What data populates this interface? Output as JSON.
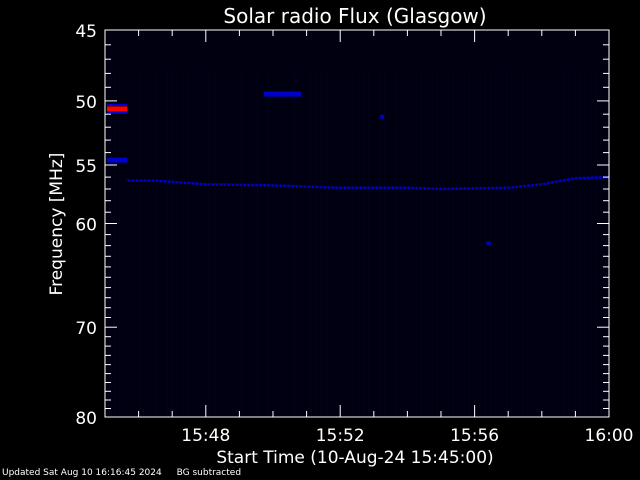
{
  "chart_data": {
    "type": "heatmap",
    "title": "Solar radio Flux (Glasgow)",
    "xlabel": "Start Time (10-Aug-24 15:45:00)",
    "ylabel": "Frequency [MHz]",
    "xlim": [
      "15:45:00",
      "16:00:00"
    ],
    "x_ticks": [
      "15:48",
      "15:52",
      "15:56",
      "16:00"
    ],
    "ylim": [
      45,
      80
    ],
    "y_scale": "log",
    "y_reversed": true,
    "y_ticks": [
      "45",
      "50",
      "55",
      "60",
      "70",
      "80"
    ],
    "colors": {
      "background": "#000011",
      "band": "#0000cc",
      "strong": "#ff0000"
    },
    "features": [
      {
        "kind": "band",
        "mhz": [
          56.3,
          56.3,
          56.6,
          56.7,
          56.9,
          56.9,
          57.0,
          56.9,
          56.6,
          56.1,
          56.0
        ],
        "times": [
          "15:45:40",
          "15:46:30",
          "15:48:00",
          "15:50:00",
          "15:52:00",
          "15:54:00",
          "15:55:00",
          "15:57:00",
          "15:58:00",
          "15:59:00",
          "16:00:00"
        ]
      },
      {
        "kind": "burst",
        "start": "15:45:00",
        "end": "15:45:40",
        "mhz": 50.6,
        "color": "strong"
      },
      {
        "kind": "burst",
        "start": "15:45:00",
        "end": "15:45:40",
        "mhz": 54.6,
        "color": "band"
      },
      {
        "kind": "burst",
        "start": "15:49:40",
        "end": "15:50:50",
        "mhz": 49.5,
        "color": "band"
      },
      {
        "kind": "spot",
        "time": "15:53:15",
        "mhz": 51.2,
        "color": "band"
      },
      {
        "kind": "spot",
        "time": "15:56:25",
        "mhz": 61.8,
        "color": "band"
      }
    ]
  },
  "footer": {
    "updated": "Updated Sat Aug 10 16:16:45 2024",
    "mode": "BG subtracted"
  }
}
